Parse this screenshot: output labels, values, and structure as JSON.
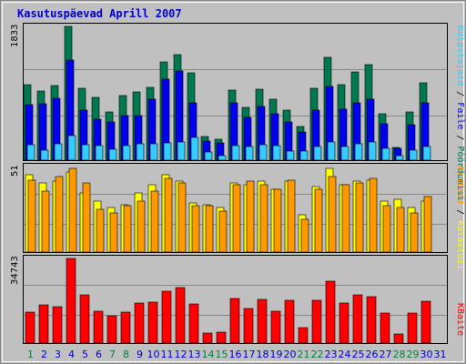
{
  "chart_data": {
    "type": "bar",
    "title": "Kasutuspäevad Aprill 2007",
    "categories": [
      "1",
      "2",
      "3",
      "4",
      "5",
      "6",
      "7",
      "8",
      "9",
      "10",
      "11",
      "12",
      "13",
      "14",
      "15",
      "16",
      "17",
      "18",
      "19",
      "20",
      "21",
      "22",
      "23",
      "24",
      "25",
      "26",
      "27",
      "28",
      "29",
      "30",
      "31"
    ],
    "weekend_days": [
      "1",
      "7",
      "8",
      "14",
      "15",
      "21",
      "22",
      "28",
      "29"
    ],
    "panels": [
      {
        "name": "top",
        "max_label": "1833",
        "ylim": [
          0,
          1833
        ],
        "series": [
          {
            "name": "Pöördumisi",
            "color": "#007850",
            "values": [
              1040,
              950,
              1025,
              1833,
              985,
              855,
              660,
              885,
              935,
              1000,
              1350,
              1450,
              1200,
              320,
              290,
              955,
              725,
              970,
              840,
              685,
              465,
              990,
              1410,
              1035,
              1210,
              1315,
              630,
              175,
              655,
              1060,
              null
            ]
          },
          {
            "name": "Faile",
            "color": "#0000ee",
            "values": [
              755,
              770,
              850,
              1375,
              685,
              565,
              520,
              615,
              605,
              840,
              1110,
              1220,
              790,
              260,
              240,
              790,
              580,
              740,
              630,
              520,
              385,
              690,
              1010,
              700,
              785,
              830,
              500,
              165,
              490,
              780,
              null
            ]
          },
          {
            "name": "Külastajaid",
            "color": "#33ccff",
            "values": [
              210,
              140,
              230,
              340,
              210,
              200,
              150,
              195,
              225,
              220,
              240,
              250,
              310,
              110,
              60,
              200,
              190,
              215,
              205,
              120,
              125,
              190,
              255,
              190,
              225,
              245,
              160,
              60,
              135,
              190,
              null
            ]
          }
        ]
      },
      {
        "name": "middle",
        "max_label": "51",
        "ylim": [
          0,
          51
        ],
        "series": [
          {
            "name": "Külastusi",
            "color": "#ffff00",
            "values": [
              47,
              42,
              43,
              49,
              36,
              31,
              27,
              29,
              36,
              41,
              47,
              43,
              30,
              29,
              27,
              42,
              41,
              43,
              38,
              43,
              23,
              40,
              51,
              41,
              43,
              44,
              31,
              32,
              27,
              31,
              null
            ]
          },
          {
            "name": "Aruteid",
            "color": "#ff9900",
            "values": [
              44,
              37,
              46,
              51,
              42,
              26,
              24,
              28,
              31,
              37,
              45,
              42,
              28,
              28,
              25,
              41,
              43,
              41,
              38,
              44,
              20,
              38,
              46,
              41,
              42,
              45,
              28,
              27,
              24,
              34,
              null
            ]
          }
        ]
      },
      {
        "name": "bottom",
        "max_label": "34743",
        "ylim": [
          0,
          34743
        ],
        "series": [
          {
            "name": "KBaite",
            "color": "#ff0000",
            "values": [
              12670,
              15790,
              15070,
              34743,
              19660,
              12920,
              11320,
              12530,
              16430,
              16700,
              21300,
              22800,
              16100,
              4050,
              4600,
              18400,
              14280,
              17900,
              12900,
              17700,
              6500,
              17600,
              25500,
              16600,
              19900,
              19000,
              12260,
              3700,
              12350,
              17200,
              null
            ]
          }
        ]
      }
    ],
    "side_labels": {
      "top": [
        {
          "text": "Külastajaid",
          "color": "#33ccff"
        },
        {
          "text": " / ",
          "color": "#000000"
        },
        {
          "text": "Faile",
          "color": "#0000ee"
        },
        {
          "text": " / ",
          "color": "#000000"
        },
        {
          "text": "Pöördumisi",
          "color": "#007850"
        }
      ],
      "middle": [
        {
          "text": "Aruteid",
          "color": "#ff9900"
        },
        {
          "text": " / ",
          "color": "#000000"
        },
        {
          "text": "Külastusi",
          "color": "#ffff00"
        }
      ],
      "bottom": [
        {
          "text": "KBaite",
          "color": "#ff0000"
        }
      ]
    },
    "colors": {
      "panel_bg": "#c0c0c0",
      "frame_bg": "#c0c0c0",
      "weekday_label": "#0000cc",
      "weekend_label": "#008040",
      "title": "#0000cc"
    },
    "grid": true,
    "legend": "right-vertical"
  }
}
